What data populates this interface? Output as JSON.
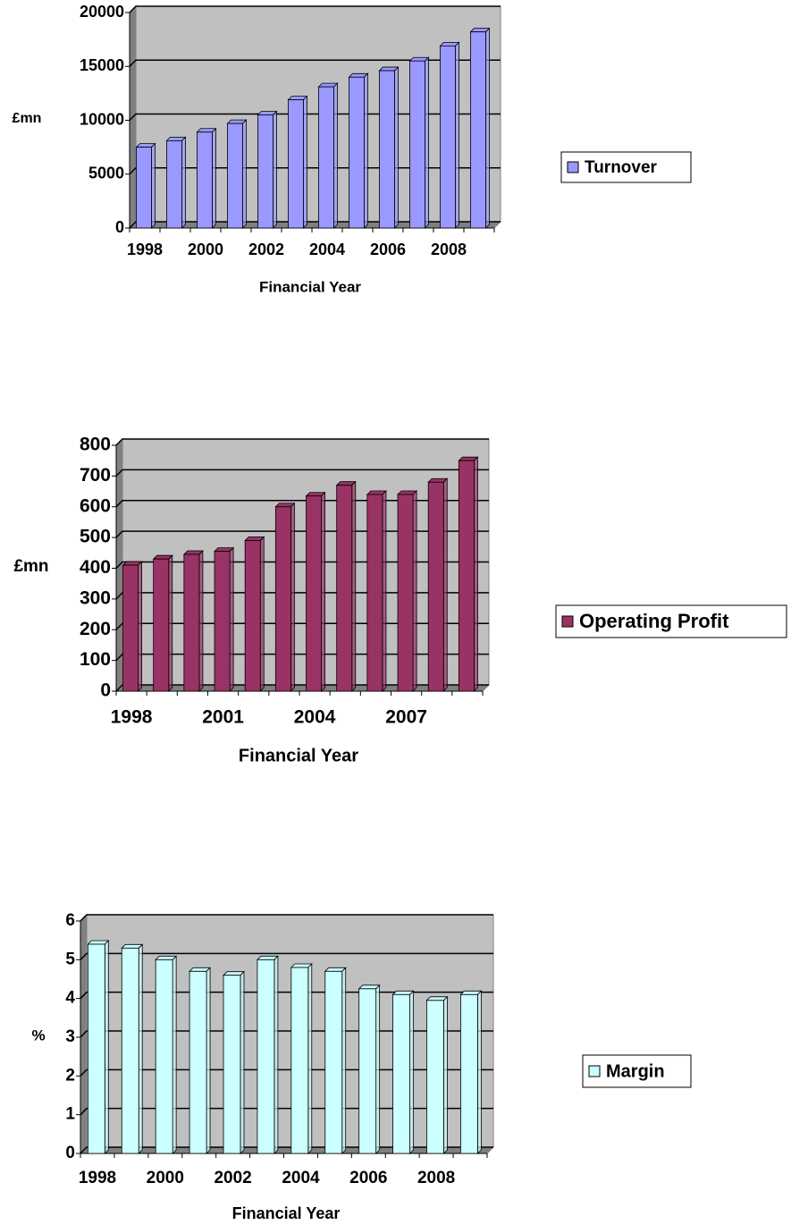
{
  "chart_data": [
    {
      "type": "bar",
      "categories": [
        "1998",
        null,
        "2000",
        null,
        "2002",
        null,
        "2004",
        null,
        "2006",
        null,
        "2008",
        null
      ],
      "series": [
        {
          "name": "Turnover",
          "color": "#9999ff",
          "values": [
            7500,
            8100,
            8900,
            9700,
            10500,
            11900,
            13100,
            14000,
            14600,
            15500,
            16900,
            18200
          ]
        }
      ],
      "y_label": "£mn",
      "x_label": "Financial Year",
      "ylim": [
        0,
        20000
      ],
      "yticks": [
        0,
        5000,
        10000,
        15000,
        20000
      ],
      "grid": true,
      "legend": "right"
    },
    {
      "type": "bar",
      "categories": [
        "1998",
        null,
        null,
        "2001",
        null,
        null,
        "2004",
        null,
        null,
        "2007",
        null,
        null
      ],
      "series": [
        {
          "name": "Operating Profit",
          "color": "#993366",
          "values": [
            410,
            430,
            445,
            455,
            490,
            600,
            635,
            670,
            640,
            640,
            680,
            750
          ]
        }
      ],
      "y_label": "£mn",
      "x_label": "Financial Year",
      "ylim": [
        0,
        800
      ],
      "yticks": [
        0,
        100,
        200,
        300,
        400,
        500,
        600,
        700,
        800
      ],
      "grid": true,
      "legend": "right"
    },
    {
      "type": "bar",
      "categories": [
        "1998",
        null,
        "2000",
        null,
        "2002",
        null,
        "2004",
        null,
        "2006",
        null,
        "2008",
        null
      ],
      "series": [
        {
          "name": "Margin",
          "color": "#ccffff",
          "values": [
            5.4,
            5.3,
            5.0,
            4.7,
            4.6,
            5.0,
            4.8,
            4.7,
            4.25,
            4.1,
            3.95,
            4.1
          ]
        }
      ],
      "y_label": "%",
      "x_label": "Financial Year",
      "ylim": [
        0,
        6
      ],
      "yticks": [
        0,
        1,
        2,
        3,
        4,
        5,
        6
      ],
      "grid": true,
      "legend": "right"
    }
  ]
}
